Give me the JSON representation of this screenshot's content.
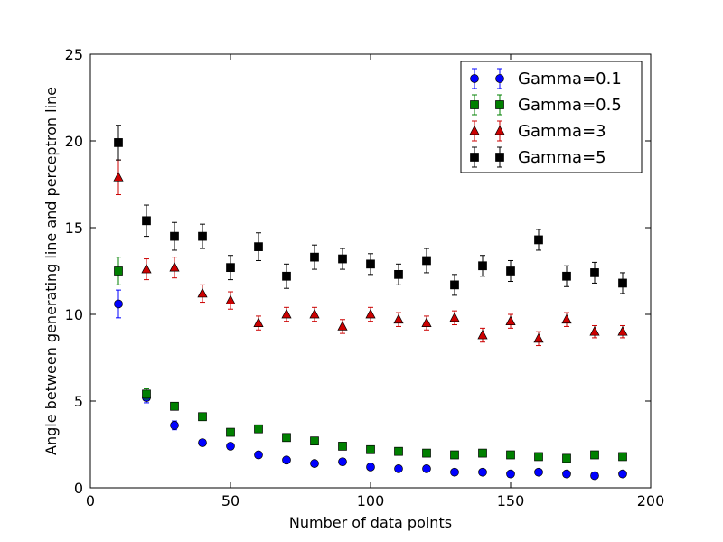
{
  "chart_data": {
    "type": "scatter",
    "title": "",
    "xlabel": "Number of data points",
    "ylabel": "Angle between generating line and perceptron line",
    "xlim": [
      0,
      200
    ],
    "ylim": [
      0,
      25
    ],
    "xticks": [
      0,
      50,
      100,
      150,
      200
    ],
    "yticks": [
      0,
      5,
      10,
      15,
      20,
      25
    ],
    "grid": false,
    "legend_position": "top-right",
    "error_bars": true,
    "x": [
      10,
      20,
      30,
      40,
      50,
      60,
      70,
      80,
      90,
      100,
      110,
      120,
      130,
      140,
      150,
      160,
      170,
      180,
      190
    ],
    "series": [
      {
        "name": "Gamma=0.1",
        "marker": "circle",
        "color": "#0000ff",
        "values": [
          10.6,
          5.2,
          3.6,
          2.6,
          2.4,
          1.9,
          1.6,
          1.4,
          1.5,
          1.2,
          1.1,
          1.1,
          0.9,
          0.9,
          0.8,
          0.9,
          0.8,
          0.7,
          0.8
        ],
        "errors": [
          0.8,
          0.3,
          0.25,
          0.15,
          0.15,
          0.1,
          0.1,
          0.1,
          0.1,
          0.1,
          0.1,
          0.1,
          0.1,
          0.1,
          0.1,
          0.1,
          0.1,
          0.1,
          0.1
        ]
      },
      {
        "name": "Gamma=0.5",
        "marker": "square",
        "color": "#008000",
        "values": [
          12.5,
          5.4,
          4.7,
          4.1,
          3.2,
          3.4,
          2.9,
          2.7,
          2.4,
          2.2,
          2.1,
          2.0,
          1.9,
          2.0,
          1.9,
          1.8,
          1.7,
          1.9,
          1.8
        ],
        "errors": [
          0.8,
          0.3,
          0.2,
          0.2,
          0.15,
          0.15,
          0.1,
          0.1,
          0.1,
          0.1,
          0.1,
          0.1,
          0.1,
          0.1,
          0.1,
          0.1,
          0.1,
          0.1,
          0.1
        ]
      },
      {
        "name": "Gamma=3",
        "marker": "triangle",
        "color": "#cc0000",
        "values": [
          17.9,
          12.6,
          12.7,
          11.2,
          10.8,
          9.5,
          10.0,
          10.0,
          9.3,
          10.0,
          9.7,
          9.5,
          9.8,
          8.8,
          9.6,
          8.6,
          9.7,
          9.0,
          9.0
        ],
        "errors": [
          1.0,
          0.6,
          0.6,
          0.5,
          0.5,
          0.4,
          0.4,
          0.4,
          0.4,
          0.4,
          0.4,
          0.4,
          0.4,
          0.4,
          0.4,
          0.4,
          0.4,
          0.35,
          0.35
        ]
      },
      {
        "name": "Gamma=5",
        "marker": "square",
        "color": "#000000",
        "values": [
          19.9,
          15.4,
          14.5,
          14.5,
          12.7,
          13.9,
          12.2,
          13.3,
          13.2,
          12.9,
          12.3,
          13.1,
          11.7,
          12.8,
          12.5,
          14.3,
          12.2,
          12.4,
          11.8
        ],
        "errors": [
          1.0,
          0.9,
          0.8,
          0.7,
          0.7,
          0.8,
          0.7,
          0.7,
          0.6,
          0.6,
          0.6,
          0.7,
          0.6,
          0.6,
          0.6,
          0.6,
          0.6,
          0.6,
          0.6
        ]
      }
    ]
  }
}
